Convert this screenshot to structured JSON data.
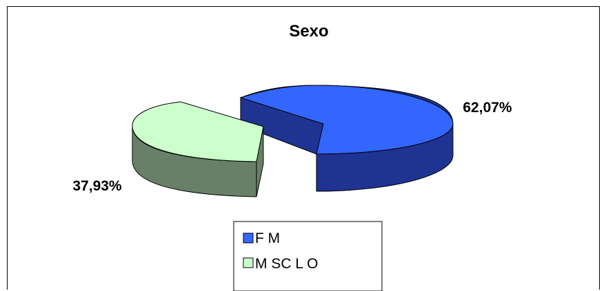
{
  "chart_data": {
    "type": "pie",
    "title": "Sexo",
    "style": "3d-exploded",
    "legend_position": "bottom",
    "categories": [
      "F",
      "M"
    ],
    "values": [
      62.07,
      37.93
    ],
    "data_labels": [
      "62,07%",
      "37,93%"
    ],
    "legend_labels": [
      "F M",
      "M SC L O"
    ],
    "colors": {
      "F": {
        "top": "#3366ff",
        "side": "#1f3393"
      },
      "M": {
        "top": "#ccffcc",
        "side": "#688068"
      }
    }
  }
}
